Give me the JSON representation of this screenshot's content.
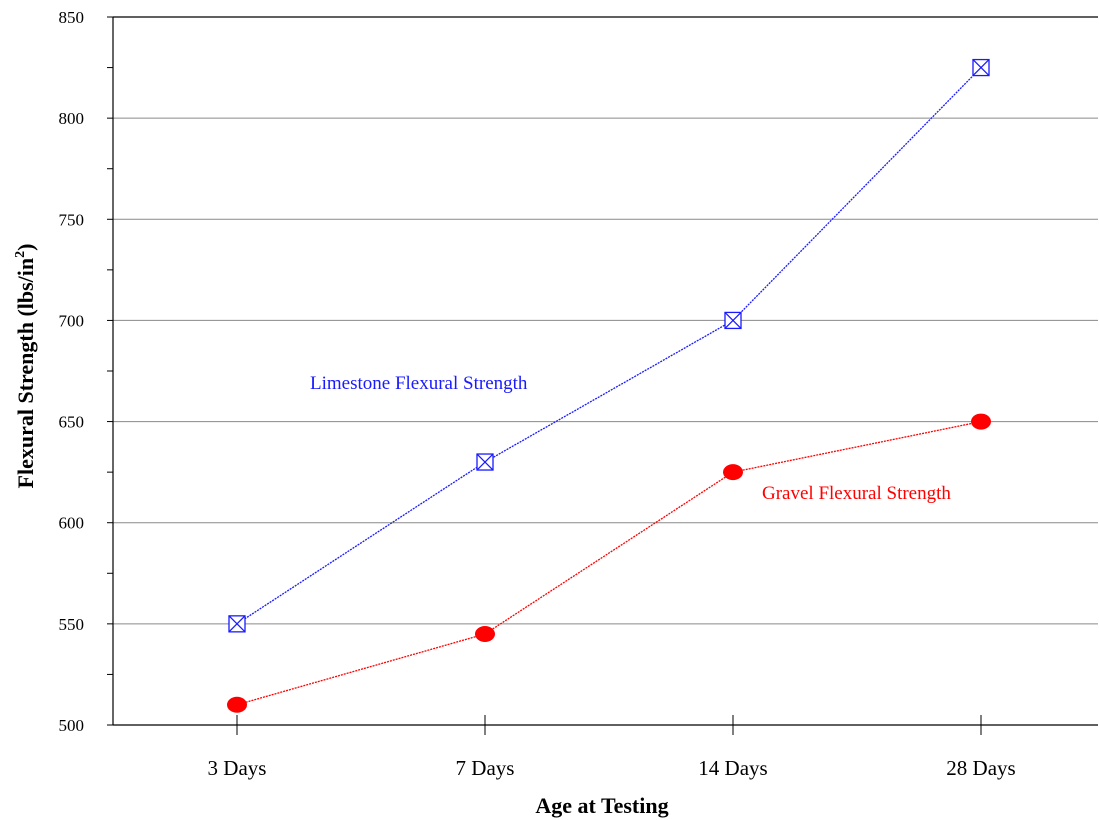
{
  "chart_data": {
    "type": "line",
    "categories": [
      "3 Days",
      "7 Days",
      "14 Days",
      "28 Days"
    ],
    "series": [
      {
        "name": "Limestone Flexural Strength",
        "values": [
          550,
          630,
          700,
          825
        ],
        "color": "#1a1aff",
        "marker": "boxed-x"
      },
      {
        "name": "Gravel Flexural Strength",
        "values": [
          510,
          545,
          625,
          650
        ],
        "color": "#ff0000",
        "marker": "filled-circle"
      }
    ],
    "xlabel": "Age at Testing",
    "ylabel_main": "Flexural Strength (lbs/in",
    "ylabel_sup": "2",
    "ylabel_close": ")",
    "ylim": [
      500,
      850
    ],
    "yticks": [
      "500",
      "550",
      "600",
      "650",
      "700",
      "750",
      "800",
      "850"
    ],
    "grid": true
  }
}
